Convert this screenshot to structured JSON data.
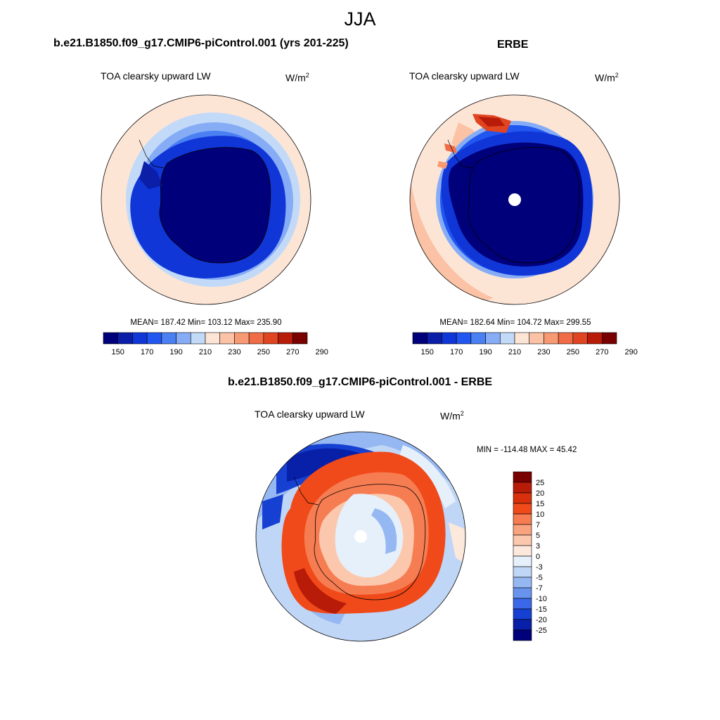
{
  "figure": {
    "title": "JJA"
  },
  "panels": {
    "model": {
      "title": "b.e21.B1850.f09_g17.CMIP6-piControl.001 (yrs 201-225)",
      "variable_label": "TOA clearsky upward LW",
      "units_base": "W/m",
      "units_exp": "2",
      "stats_text": "MEAN= 187.42  Min= 103.12  Max= 235.90"
    },
    "obs": {
      "title": "ERBE",
      "variable_label": "TOA clearsky upward LW",
      "units_base": "W/m",
      "units_exp": "2",
      "stats_text": "MEAN= 182.64  Min= 104.72  Max= 299.55"
    },
    "diff": {
      "title": "b.e21.B1850.f09_g17.CMIP6-piControl.001 - ERBE",
      "variable_label": "TOA clearsky upward LW",
      "units_base": "W/m",
      "units_exp": "2",
      "stats_text": "MIN = -114.48 MAX =  45.42"
    }
  },
  "chart_data": [
    {
      "type": "heatmap",
      "projection": "south-polar-stereographic",
      "title": "b.e21.B1850.f09_g17.CMIP6-piControl.001 (yrs 201-225)",
      "variable": "TOA clearsky upward LW",
      "units": "W/m2",
      "mean": 187.42,
      "min": 103.12,
      "max": 235.9,
      "colorbar_ticks": [
        "150",
        "170",
        "190",
        "210",
        "230",
        "250",
        "270",
        "290"
      ],
      "colorbar_colors": [
        "#00007a",
        "#0a1ea8",
        "#1036d8",
        "#2156f0",
        "#4a80f2",
        "#86acf5",
        "#c2daf8",
        "#fde5d6",
        "#fbc2a6",
        "#f79a74",
        "#f06c46",
        "#e04420",
        "#b81c08",
        "#7a0000"
      ]
    },
    {
      "type": "heatmap",
      "projection": "south-polar-stereographic",
      "title": "ERBE",
      "variable": "TOA clearsky upward LW",
      "units": "W/m2",
      "mean": 182.64,
      "min": 104.72,
      "max": 299.55,
      "colorbar_ticks": [
        "150",
        "170",
        "190",
        "210",
        "230",
        "250",
        "270",
        "290"
      ],
      "colorbar_colors": [
        "#00007a",
        "#0a1ea8",
        "#1036d8",
        "#2156f0",
        "#4a80f2",
        "#86acf5",
        "#c2daf8",
        "#fde5d6",
        "#fbc2a6",
        "#f79a74",
        "#f06c46",
        "#e04420",
        "#b81c08",
        "#7a0000"
      ]
    },
    {
      "type": "heatmap",
      "projection": "south-polar-stereographic",
      "title": "b.e21.B1850.f09_g17.CMIP6-piControl.001 - ERBE",
      "variable": "TOA clearsky upward LW",
      "units": "W/m2",
      "min": -114.48,
      "max": 45.42,
      "colorbar_ticks": [
        "25",
        "20",
        "15",
        "10",
        "7",
        "5",
        "3",
        "0",
        "-3",
        "-5",
        "-7",
        "-10",
        "-15",
        "-20",
        "-25"
      ],
      "colorbar_colors": [
        "#7a0000",
        "#b81c08",
        "#d8300c",
        "#f04a1a",
        "#f67c52",
        "#f9a27e",
        "#fbc8ae",
        "#fde8dc",
        "#e6f0fb",
        "#c0d6f6",
        "#96b8f2",
        "#6894ee",
        "#3a68e8",
        "#1640d2",
        "#0820a8",
        "#00007a"
      ]
    }
  ]
}
